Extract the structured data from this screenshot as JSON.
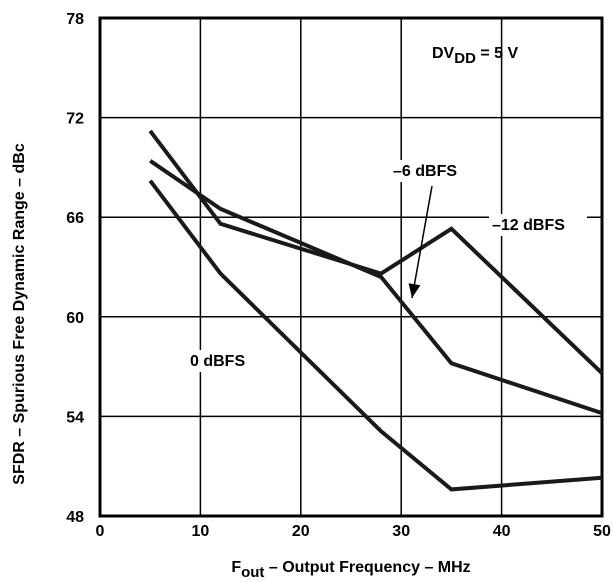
{
  "chart_data": {
    "type": "line",
    "x_tick_labels": [
      "0",
      "10",
      "20",
      "30",
      "40",
      "50"
    ],
    "y_tick_labels": [
      "48",
      "54",
      "60",
      "66",
      "72",
      "78"
    ],
    "xlim": [
      0,
      50
    ],
    "ylim": [
      48,
      78
    ],
    "grid": true,
    "ylabel": "SFDR – Spurious Free Dynamic Range – dBc",
    "xlabel": {
      "main": "F",
      "sub": "out",
      "rest": " – Output Frequency – MHz"
    },
    "annotation": {
      "main": "DV",
      "sub": "DD",
      "rest": " = 5 V"
    },
    "series": [
      {
        "name": "0 dBFS",
        "x": [
          5,
          12,
          28,
          35,
          50
        ],
        "y": [
          68.2,
          62.6,
          53.1,
          49.6,
          50.3
        ]
      },
      {
        "name": "–6 dBFS",
        "x": [
          5,
          12,
          28,
          35,
          50
        ],
        "y": [
          69.4,
          66.5,
          62.4,
          57.2,
          54.2
        ]
      },
      {
        "name": "–12 dBFS",
        "x": [
          5,
          12,
          28,
          35,
          50
        ],
        "y": [
          71.2,
          65.6,
          62.6,
          65.3,
          56.6
        ]
      }
    ]
  }
}
